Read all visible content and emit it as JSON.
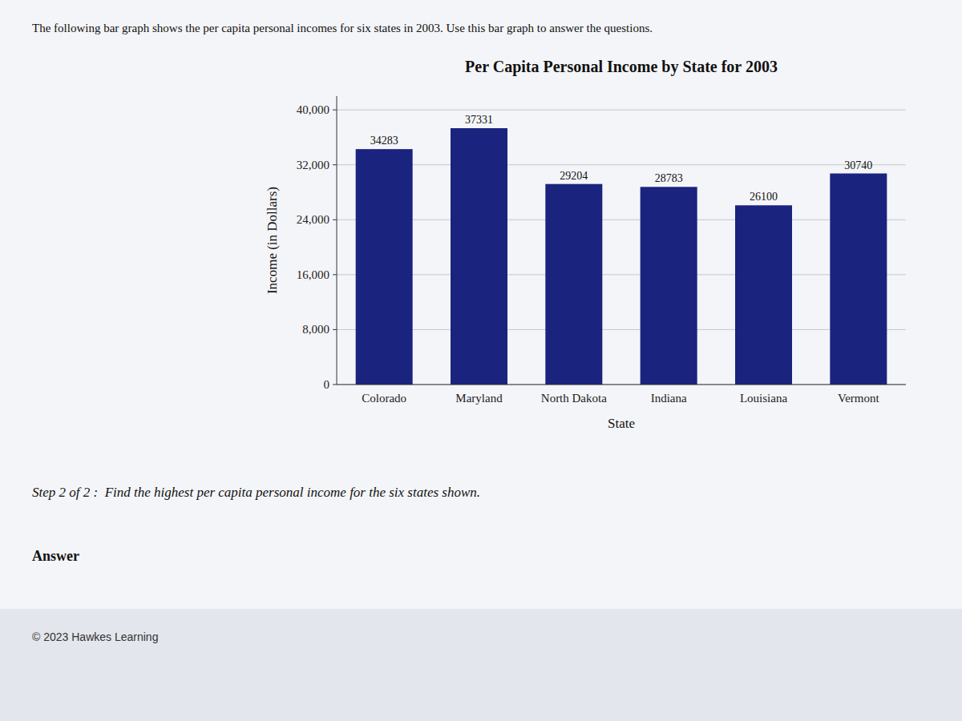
{
  "chart_data": {
    "type": "bar",
    "title": "Per Capita Personal Income by State for 2003",
    "xlabel": "State",
    "ylabel": "Income (in Dollars)",
    "categories": [
      "Colorado",
      "Maryland",
      "North Dakota",
      "Indiana",
      "Louisiana",
      "Vermont"
    ],
    "values": [
      34283,
      37331,
      29204,
      28783,
      26100,
      30740
    ],
    "color": "#1a237e",
    "ylim": [
      0,
      42000
    ],
    "yticks": [
      0,
      {
        "value": 8000,
        "label": "8,000"
      },
      {
        "value": 16000,
        "label": "16,000"
      },
      {
        "value": 24000,
        "label": "24,000"
      },
      {
        "value": 32000,
        "label": "32,000"
      },
      {
        "value": 40000,
        "label": "40,000"
      }
    ],
    "grid": true,
    "data_labels": true,
    "annotations": [
      "The following bar graph shows the per capita personal incomes for six states in 2003. Use this bar graph to answer the questions.",
      "Step 2 of 2 :  Find the highest per capita personal income for the six states shown.",
      "Answer",
      "© 2023 Hawkes Learning"
    ]
  }
}
